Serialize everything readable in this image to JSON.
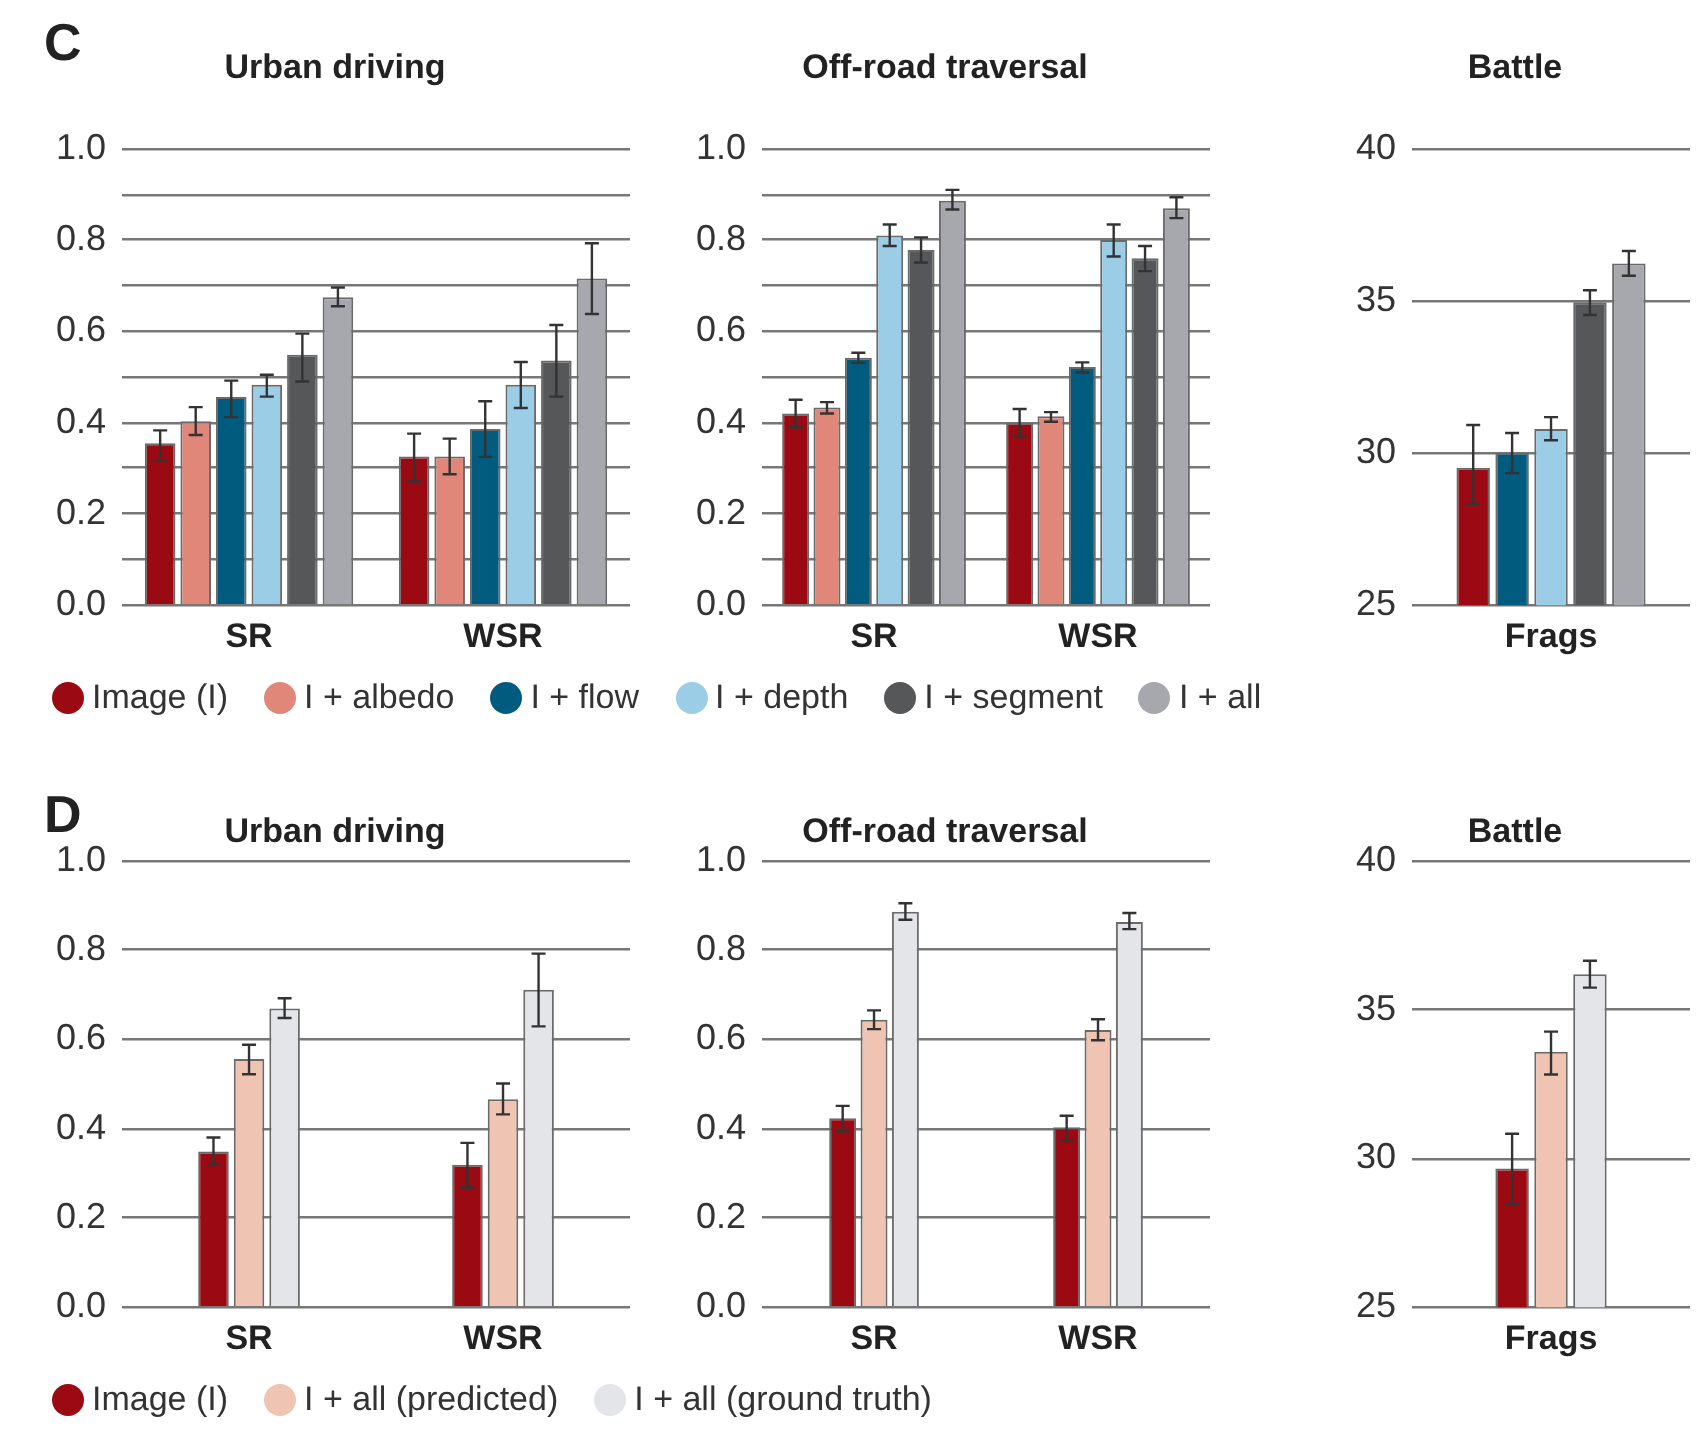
{
  "chart_data": [
    {
      "type": "bar",
      "title": "Urban driving",
      "annotations": [
        "C"
      ],
      "categories": [
        "SR",
        "WSR"
      ],
      "ylim": [
        0,
        1.0
      ],
      "yticks": [
        {
          "value": 0,
          "label": "0.0"
        },
        {
          "value": 0.1,
          "label": null
        },
        {
          "value": 0.2,
          "label": "0.2"
        },
        {
          "value": 0.3,
          "label": null
        },
        {
          "value": 0.4,
          "label": "0.4"
        },
        {
          "value": 0.5,
          "label": null
        },
        {
          "value": 0.6,
          "label": "0.6"
        },
        {
          "value": 0.7,
          "label": null
        },
        {
          "value": 0.8,
          "label": "0.8"
        },
        {
          "value": 0.9,
          "label": null
        },
        {
          "value": 1.0,
          "label": "1.0"
        }
      ],
      "grid": "y",
      "legend": "bottom",
      "series": [
        {
          "name": "Image (I)",
          "color": "#9b0a12",
          "values": [
            0.355,
            0.326
          ],
          "errors": [
            [
              0.317,
              0.383
            ],
            [
              0.271,
              0.376
            ]
          ]
        },
        {
          "name": "I + albedo",
          "color": "#e0877a",
          "values": [
            0.403,
            0.326
          ],
          "errors": [
            [
              0.373,
              0.434
            ],
            [
              0.287,
              0.365
            ]
          ]
        },
        {
          "name": "I + flow",
          "color": "#005b7f",
          "values": [
            0.456,
            0.386
          ],
          "errors": [
            [
              0.412,
              0.492
            ],
            [
              0.325,
              0.447
            ]
          ]
        },
        {
          "name": "I + depth",
          "color": "#9ccde6",
          "values": [
            0.483,
            0.483
          ],
          "errors": [
            [
              0.457,
              0.505
            ],
            [
              0.432,
              0.533
            ]
          ]
        },
        {
          "name": "I + segment",
          "color": "#555759",
          "values": [
            0.549,
            0.536
          ],
          "errors": [
            [
              0.49,
              0.595
            ],
            [
              0.457,
              0.614
            ]
          ]
        },
        {
          "name": "I + all",
          "color": "#a7a8ad",
          "values": [
            0.675,
            0.716
          ],
          "errors": [
            [
              0.655,
              0.696
            ],
            [
              0.638,
              0.793
            ]
          ]
        }
      ]
    },
    {
      "type": "bar",
      "title": "Off-road traversal",
      "categories": [
        "SR",
        "WSR"
      ],
      "ylim": [
        0,
        1.0
      ],
      "yticks": [
        {
          "value": 0,
          "label": "0.0"
        },
        {
          "value": 0.1,
          "label": null
        },
        {
          "value": 0.2,
          "label": "0.2"
        },
        {
          "value": 0.3,
          "label": null
        },
        {
          "value": 0.4,
          "label": "0.4"
        },
        {
          "value": 0.5,
          "label": null
        },
        {
          "value": 0.6,
          "label": "0.6"
        },
        {
          "value": 0.7,
          "label": null
        },
        {
          "value": 0.8,
          "label": "0.8"
        },
        {
          "value": 0.9,
          "label": null
        },
        {
          "value": 1.0,
          "label": "1.0"
        }
      ],
      "grid": "y",
      "series": [
        {
          "color": "#9b0a12",
          "values": [
            0.42,
            0.4
          ],
          "errors": [
            [
              0.39,
              0.45
            ],
            [
              0.369,
              0.43
            ]
          ]
        },
        {
          "color": "#e0877a",
          "values": [
            0.433,
            0.414
          ],
          "errors": [
            [
              0.42,
              0.445
            ],
            [
              0.402,
              0.423
            ]
          ]
        },
        {
          "color": "#005b7f",
          "values": [
            0.542,
            0.522
          ],
          "errors": [
            [
              0.531,
              0.553
            ],
            [
              0.51,
              0.532
            ]
          ]
        },
        {
          "color": "#9ccde6",
          "values": [
            0.81,
            0.8
          ],
          "errors": [
            [
              0.787,
              0.834
            ],
            [
              0.764,
              0.834
            ]
          ]
        },
        {
          "color": "#555759",
          "values": [
            0.778,
            0.76
          ],
          "errors": [
            [
              0.751,
              0.806
            ],
            [
              0.732,
              0.787
            ]
          ]
        },
        {
          "color": "#a7a8ad",
          "values": [
            0.886,
            0.87
          ],
          "errors": [
            [
              0.867,
              0.91
            ],
            [
              0.848,
              0.894
            ]
          ]
        }
      ]
    },
    {
      "type": "bar",
      "title": "Battle",
      "categories": [
        "Frags"
      ],
      "ylim": [
        25,
        40
      ],
      "yticks": [
        25,
        30,
        35,
        40
      ],
      "grid": "y",
      "series": [
        {
          "color": "#9b0a12",
          "values": [
            29.52
          ],
          "errors": [
            [
              28.33,
              30.92
            ]
          ]
        },
        {
          "color": "#005b7f",
          "values": [
            30.02
          ],
          "errors": [
            [
              29.34,
              30.66
            ]
          ]
        },
        {
          "color": "#9ccde6",
          "values": [
            30.79
          ],
          "errors": [
            [
              30.42,
              31.18
            ]
          ]
        },
        {
          "color": "#555759",
          "values": [
            34.96
          ],
          "errors": [
            [
              34.54,
              35.35
            ]
          ]
        },
        {
          "color": "#a7a8ad",
          "values": [
            36.23
          ],
          "errors": [
            [
              35.83,
              36.64
            ]
          ]
        }
      ]
    },
    {
      "type": "bar",
      "title": "Urban driving",
      "annotations": [
        "D"
      ],
      "categories": [
        "SR",
        "WSR"
      ],
      "ylim": [
        0,
        1.0
      ],
      "yticks": [
        {
          "value": 0,
          "label": "0.0"
        },
        {
          "value": 0.2,
          "label": "0.2"
        },
        {
          "value": 0.4,
          "label": "0.4"
        },
        {
          "value": 0.6,
          "label": "0.6"
        },
        {
          "value": 0.8,
          "label": "0.8"
        },
        {
          "value": 1.0,
          "label": "1.0"
        }
      ],
      "grid": "y",
      "legend": "bottom",
      "series": [
        {
          "name": "Image (I)",
          "color": "#9b0a12",
          "values": [
            0.349,
            0.319
          ],
          "errors": [
            [
              0.32,
              0.38
            ],
            [
              0.268,
              0.368
            ]
          ]
        },
        {
          "name": "I + all (predicted)",
          "color": "#f0c4b2",
          "values": [
            0.556,
            0.466
          ],
          "errors": [
            [
              0.522,
              0.588
            ],
            [
              0.432,
              0.501
            ]
          ]
        },
        {
          "name": "I + all (ground truth)",
          "color": "#e4e5e8",
          "values": [
            0.669,
            0.711
          ],
          "errors": [
            [
              0.648,
              0.692
            ],
            [
              0.629,
              0.792
            ]
          ]
        }
      ]
    },
    {
      "type": "bar",
      "title": "Off-road traversal",
      "categories": [
        "SR",
        "WSR"
      ],
      "ylim": [
        0,
        1.0
      ],
      "yticks": [
        {
          "value": 0,
          "label": "0.0"
        },
        {
          "value": 0.2,
          "label": "0.2"
        },
        {
          "value": 0.4,
          "label": "0.4"
        },
        {
          "value": 0.6,
          "label": "0.6"
        },
        {
          "value": 0.8,
          "label": "0.8"
        },
        {
          "value": 1.0,
          "label": "1.0"
        }
      ],
      "grid": "y",
      "series": [
        {
          "color": "#9b0a12",
          "values": [
            0.423,
            0.403
          ],
          "errors": [
            [
              0.394,
              0.451
            ],
            [
              0.374,
              0.429
            ]
          ]
        },
        {
          "color": "#f0c4b2",
          "values": [
            0.644,
            0.621
          ],
          "errors": [
            [
              0.623,
              0.665
            ],
            [
              0.598,
              0.645
            ]
          ]
        },
        {
          "color": "#e4e5e8",
          "values": [
            0.886,
            0.863
          ],
          "errors": [
            [
              0.868,
              0.905
            ],
            [
              0.847,
              0.883
            ]
          ]
        }
      ]
    },
    {
      "type": "bar",
      "title": "Battle",
      "categories": [
        "Frags"
      ],
      "ylim": [
        25,
        40
      ],
      "yticks": [
        25,
        30,
        35,
        40
      ],
      "grid": "y",
      "series": [
        {
          "color": "#9b0a12",
          "values": [
            29.66
          ],
          "errors": [
            [
              28.47,
              30.83
            ]
          ]
        },
        {
          "color": "#f0c4b2",
          "values": [
            33.58
          ],
          "errors": [
            [
              32.82,
              34.26
            ]
          ]
        },
        {
          "color": "#e4e5e8",
          "values": [
            36.19
          ],
          "errors": [
            [
              35.74,
              36.64
            ]
          ]
        }
      ]
    }
  ]
}
